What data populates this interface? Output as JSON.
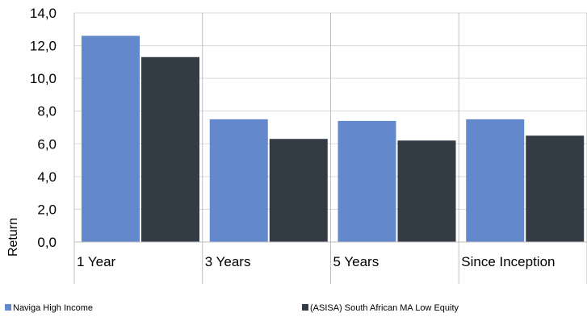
{
  "chart_data": {
    "type": "bar",
    "title": "",
    "xlabel": "",
    "ylabel": "Return",
    "categories": [
      "1 Year",
      "3 Years",
      "5 Years",
      "Since Inception"
    ],
    "series": [
      {
        "name": "Naviga High Income",
        "color": "#6389cc",
        "values": [
          12.6,
          7.5,
          7.4,
          7.5
        ]
      },
      {
        "name": "(ASISA) South African MA Low Equity",
        "color": "#333b44",
        "values": [
          11.3,
          6.3,
          6.2,
          6.5
        ]
      }
    ],
    "ylim": [
      0,
      14
    ],
    "ytick_step": 2,
    "ytick_labels": [
      "0,0",
      "2,0",
      "4,0",
      "6,0",
      "8,0",
      "10,0",
      "12,0",
      "14,0"
    ],
    "grid": true,
    "legend_position": "bottom",
    "gridline_color": "#d9d9d9",
    "axis_color": "#bfbfbf"
  }
}
